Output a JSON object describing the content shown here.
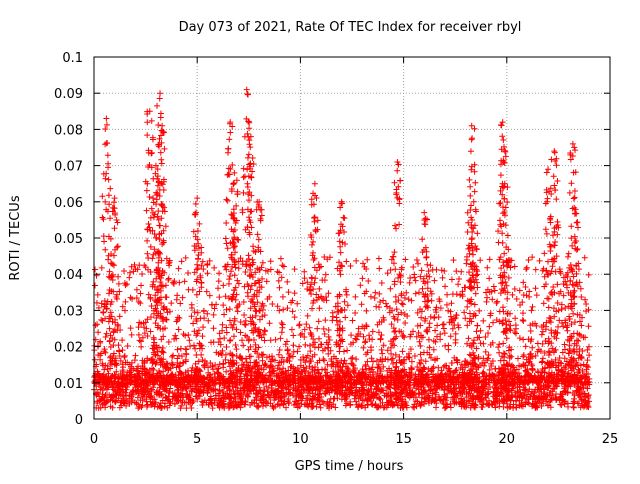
{
  "chart_data": {
    "type": "scatter",
    "title": "Day 073 of 2021, Rate Of TEC Index for receiver rbyl",
    "xlabel": "GPS time / hours",
    "ylabel": "ROTI / TECUs",
    "xlim": [
      0,
      25
    ],
    "ylim": [
      0,
      0.1
    ],
    "xticks": [
      0,
      5,
      10,
      15,
      20,
      25
    ],
    "xtick_labels": [
      "0",
      "5",
      "10",
      "15",
      "20",
      "25"
    ],
    "yticks": [
      0,
      0.01,
      0.02,
      0.03,
      0.04,
      0.05,
      0.06,
      0.07,
      0.08,
      0.09,
      0.1
    ],
    "ytick_labels": [
      "0",
      "0.01",
      "0.02",
      "0.03",
      "0.04",
      "0.05",
      "0.06",
      "0.07",
      "0.08",
      "0.09",
      "0.1"
    ],
    "grid": true,
    "marker": "+",
    "marker_color": "#ff0000",
    "series": [
      {
        "name": "ROTI",
        "x_range": [
          0,
          24
        ],
        "baseline": [
          0.003,
          0.012
        ],
        "peaks": [
          {
            "x": 0.6,
            "y": 0.083
          },
          {
            "x": 1.0,
            "y": 0.061
          },
          {
            "x": 2.7,
            "y": 0.085
          },
          {
            "x": 3.0,
            "y": 0.07
          },
          {
            "x": 3.2,
            "y": 0.09
          },
          {
            "x": 3.3,
            "y": 0.081
          },
          {
            "x": 5.0,
            "y": 0.061
          },
          {
            "x": 6.6,
            "y": 0.082
          },
          {
            "x": 6.8,
            "y": 0.068
          },
          {
            "x": 7.4,
            "y": 0.091
          },
          {
            "x": 7.6,
            "y": 0.078
          },
          {
            "x": 8.0,
            "y": 0.06
          },
          {
            "x": 10.7,
            "y": 0.065
          },
          {
            "x": 12.0,
            "y": 0.06
          },
          {
            "x": 14.7,
            "y": 0.071
          },
          {
            "x": 16.0,
            "y": 0.057
          },
          {
            "x": 18.3,
            "y": 0.081
          },
          {
            "x": 18.4,
            "y": 0.06
          },
          {
            "x": 19.8,
            "y": 0.082
          },
          {
            "x": 19.9,
            "y": 0.065
          },
          {
            "x": 22.3,
            "y": 0.074
          },
          {
            "x": 22.0,
            "y": 0.069
          },
          {
            "x": 23.2,
            "y": 0.076
          },
          {
            "x": 23.3,
            "y": 0.063
          }
        ]
      }
    ]
  }
}
